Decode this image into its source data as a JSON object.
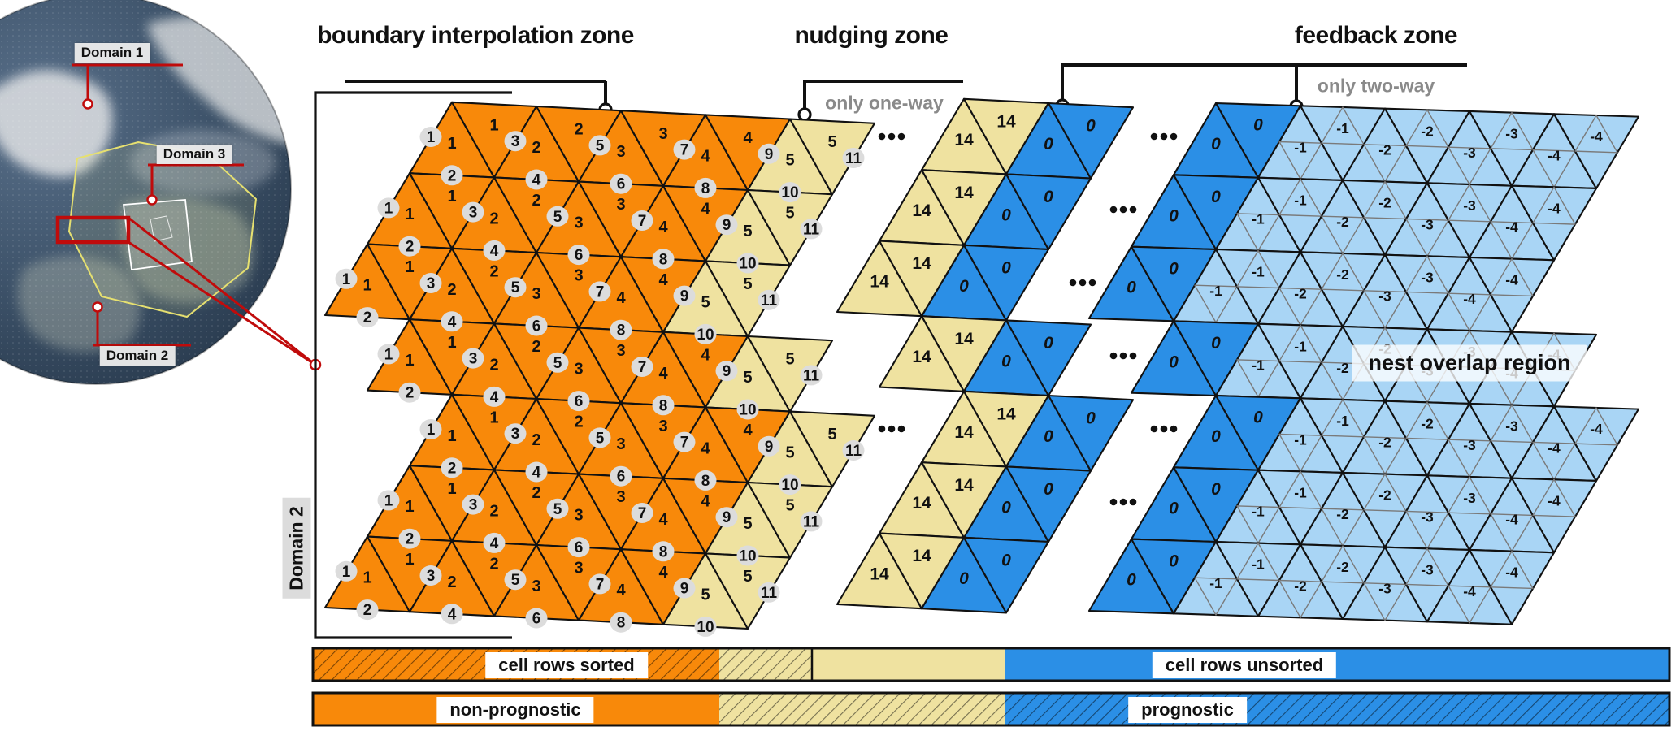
{
  "globe": {
    "domain1": "Domain 1",
    "domain3": "Domain 3",
    "domain2": "Domain 2"
  },
  "axis_label": "Domain 2",
  "callouts": {
    "boundary_title": "boundary interpolation zone",
    "nudging_title": "nudging zone",
    "nudging_sub": "only one-way",
    "feedback_title": "feedback zone",
    "feedback_sub": "only two-way"
  },
  "overlap_label": "nest overlap region",
  "legend": {
    "sorted": "cell rows sorted",
    "unsorted": "cell rows unsorted",
    "nonprognostic": "non-prognostic",
    "prognostic": "prognostic"
  },
  "mesh": {
    "orange_cell_rows": [
      1,
      2,
      3,
      4
    ],
    "edge_rows": [
      1,
      2,
      3,
      4,
      5,
      6,
      7,
      8,
      9,
      10,
      11
    ],
    "tan_cell_row": 5,
    "nudge_outer_cell_row": 14,
    "zero_cell_row": 0,
    "nest_cell_rows": [
      -1,
      -2,
      -3,
      -4
    ],
    "ellipsis": "..."
  },
  "colors": {
    "orange": "#F8890A",
    "tan": "#EFE2A0",
    "blue": "#2B8FE6",
    "light_blue": "#A9D5F5",
    "mesh_line": "#111111",
    "fine_line": "#7a7a7a",
    "red": "#C00B0B",
    "gray_text": "#8a8a8a",
    "circle_fill": "#DCDCDC"
  }
}
